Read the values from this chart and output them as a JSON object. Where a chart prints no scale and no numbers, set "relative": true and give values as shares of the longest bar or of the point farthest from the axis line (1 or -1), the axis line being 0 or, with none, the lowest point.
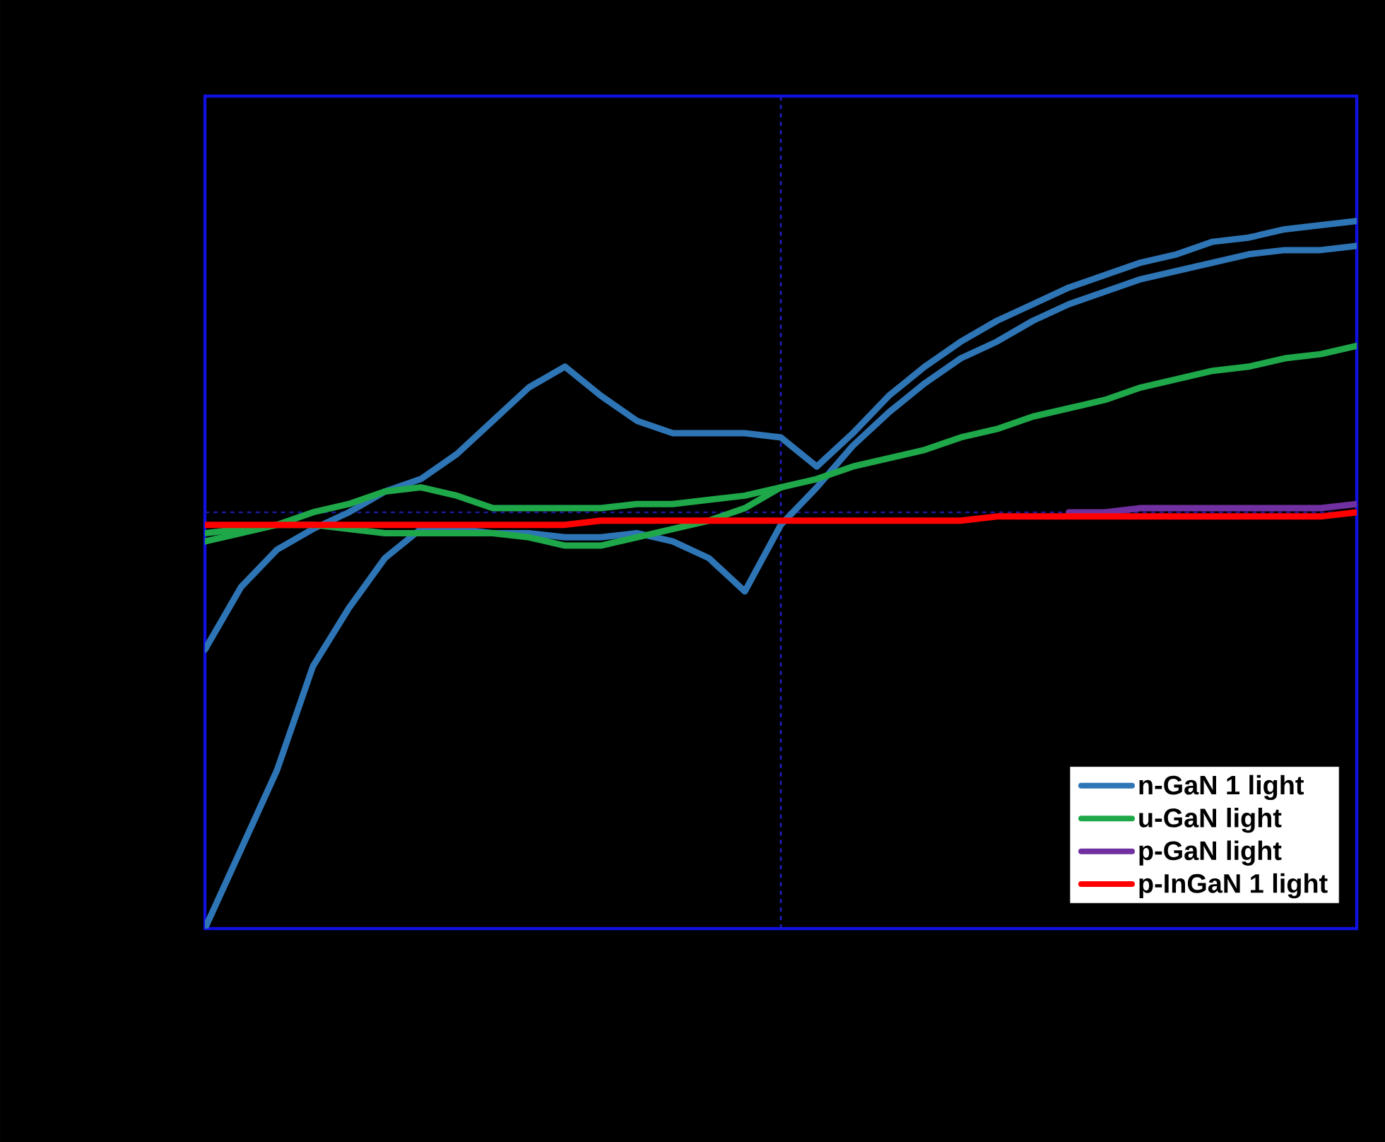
{
  "chart_data": {
    "type": "line",
    "relative": true,
    "legend": "bottom right",
    "line_style": "solid",
    "marker": "none",
    "categories": [
      null,
      null,
      null,
      null,
      null,
      null,
      null,
      null,
      null,
      null,
      null,
      null,
      null,
      null,
      null,
      null,
      null,
      null,
      null,
      null,
      null,
      null,
      null,
      null,
      null,
      null,
      null,
      null,
      null,
      null,
      null,
      null,
      null
    ],
    "ref_lines": [
      {
        "axis": "y",
        "value": 0,
        "color": "#1a1a9a",
        "line_style": "dashed"
      }
    ],
    "series": [
      {
        "name": "n-GaN 1 light",
        "color": "#2e75b6",
        "values": [
          -0.33,
          -0.18,
          -0.09,
          -0.04,
          0,
          0.05,
          0.08,
          0.14,
          0.22,
          0.3,
          0.35,
          0.28,
          0.22,
          0.19,
          0.19,
          0.19,
          0.18,
          0.11,
          0.19,
          0.28,
          0.35,
          0.41,
          0.46,
          0.5,
          0.54,
          0.57,
          0.6,
          0.62,
          0.65,
          0.66,
          0.68,
          0.69,
          0.7
        ]
      },
      {
        "color": "#2e75b6",
        "values": [
          -1.0,
          -0.81,
          -0.62,
          -0.37,
          -0.23,
          -0.11,
          -0.04,
          -0.04,
          -0.05,
          -0.05,
          -0.06,
          -0.06,
          -0.05,
          -0.07,
          -0.11,
          -0.19,
          -0.03,
          0.06,
          0.16,
          0.24,
          0.31,
          0.37,
          0.41,
          0.46,
          0.5,
          0.53,
          0.56,
          0.58,
          0.6,
          0.62,
          0.63,
          0.63,
          0.64
        ]
      },
      {
        "name": "u-GaN light",
        "color": "#1fa84a",
        "values": [
          -0.07,
          -0.05,
          -0.03,
          0,
          0.02,
          0.05,
          0.06,
          0.04,
          0.01,
          0.01,
          0.01,
          0.01,
          0.02,
          0.02,
          0.03,
          0.04,
          0.06,
          0.08,
          0.11,
          0.13,
          0.15,
          0.18,
          0.2,
          0.23,
          0.25,
          0.27,
          0.3,
          0.32,
          0.34,
          0.35,
          0.37,
          0.38,
          0.4
        ]
      },
      {
        "color": "#1fa84a",
        "values": [
          -0.05,
          -0.04,
          -0.03,
          -0.03,
          -0.04,
          -0.05,
          -0.05,
          -0.05,
          -0.05,
          -0.06,
          -0.08,
          -0.08,
          -0.06,
          -0.04,
          -0.02,
          0.01,
          0.06,
          null,
          null,
          null,
          null,
          null,
          null,
          null,
          null,
          null,
          null,
          null,
          null,
          null,
          null,
          null,
          null
        ]
      },
      {
        "name": "p-GaN light",
        "color": "#7030a0",
        "values": [
          null,
          null,
          null,
          null,
          null,
          null,
          null,
          null,
          null,
          null,
          null,
          null,
          null,
          null,
          null,
          null,
          null,
          null,
          null,
          null,
          null,
          null,
          null,
          null,
          0,
          0,
          0.01,
          0.01,
          0.01,
          0.01,
          0.01,
          0.01,
          0.02
        ]
      },
      {
        "name": "p-InGaN 1 light",
        "color": "#ff0000",
        "values": [
          -0.03,
          -0.03,
          -0.03,
          -0.03,
          -0.03,
          -0.03,
          -0.03,
          -0.03,
          -0.03,
          -0.03,
          -0.03,
          -0.02,
          -0.02,
          -0.02,
          -0.02,
          -0.02,
          -0.02,
          -0.02,
          -0.02,
          -0.02,
          -0.02,
          -0.02,
          -0.01,
          -0.01,
          -0.01,
          -0.01,
          -0.01,
          -0.01,
          -0.01,
          -0.01,
          -0.01,
          -0.01,
          0
        ]
      }
    ]
  }
}
